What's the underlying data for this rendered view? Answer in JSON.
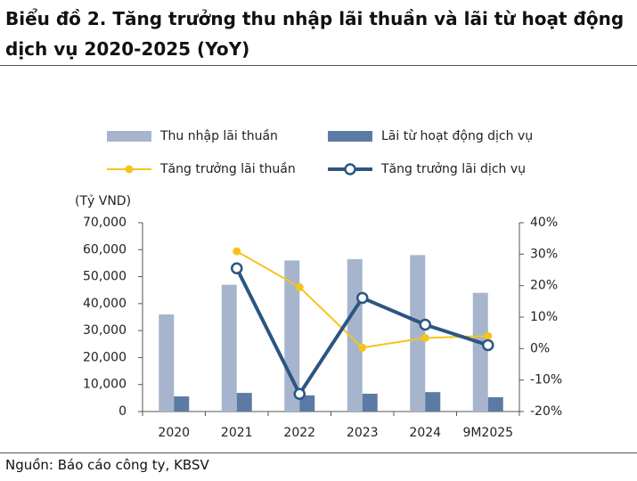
{
  "header": {
    "title": "Biểu đồ 2. Tăng trưởng thu nhập lãi thuần và lãi từ hoạt động dịch vụ 2020-2025 (YoY)"
  },
  "chart_data": {
    "type": "combo",
    "y_label": "(Tỷ VND)",
    "categories": [
      "2020",
      "2021",
      "2022",
      "2023",
      "2024",
      "9M2025"
    ],
    "series": [
      {
        "name": "Thu nhập lãi thuần",
        "type": "bar",
        "color": "#a6b5cd",
        "values": [
          36000,
          47000,
          56000,
          56500,
          58000,
          44000
        ]
      },
      {
        "name": "Lãi từ hoạt động dịch vụ",
        "type": "bar",
        "color": "#5b7ba4",
        "values": [
          5600,
          6900,
          6000,
          6600,
          7200,
          5300
        ]
      },
      {
        "name": "Tăng trưởng lãi thuần",
        "type": "line",
        "marker": "filled",
        "axis": "y2",
        "color": "#f5c41c",
        "values": [
          null,
          30.9,
          19.5,
          0.3,
          3.4,
          4.0
        ]
      },
      {
        "name": "Tăng trưởng lãi dịch vụ",
        "type": "line",
        "marker": "hollow",
        "axis": "y2",
        "color": "#2c5681",
        "values": [
          null,
          25.5,
          -14.4,
          16.1,
          7.6,
          1.1
        ]
      }
    ],
    "ylim": [
      0,
      70000
    ],
    "yticks": [
      0,
      {
        "value": 10000,
        "label": "10,000"
      },
      {
        "value": 20000,
        "label": "20,000"
      },
      {
        "value": 30000,
        "label": "30,000"
      },
      {
        "value": 40000,
        "label": "40,000"
      },
      {
        "value": 50000,
        "label": "50,000"
      },
      {
        "value": 60000,
        "label": "60,000"
      },
      {
        "value": 70000,
        "label": "70,000"
      }
    ],
    "y2lim": [
      -20,
      40
    ],
    "y2ticks": [
      {
        "value": -20,
        "label": "-20%"
      },
      {
        "value": -10,
        "label": "-10%"
      },
      {
        "value": 0,
        "label": "0%"
      },
      {
        "value": 10,
        "label": "10%"
      },
      {
        "value": 20,
        "label": "20%"
      },
      {
        "value": 30,
        "label": "30%"
      },
      {
        "value": 40,
        "label": "40%"
      }
    ]
  },
  "footer": {
    "source": "Nguồn: Báo cáo công ty, KBSV"
  }
}
